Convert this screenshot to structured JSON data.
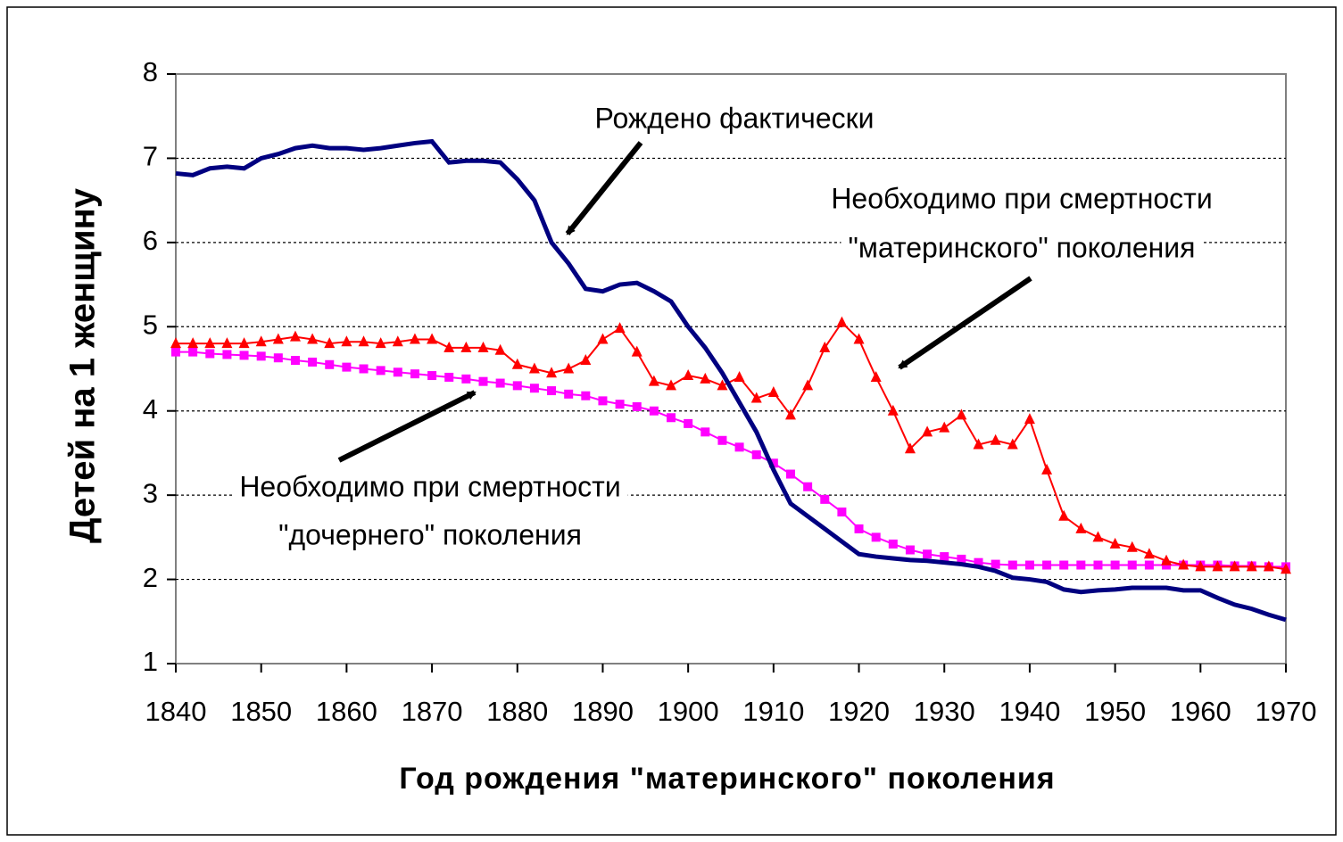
{
  "chart_data": {
    "type": "line",
    "xlabel": "Год рождения \"материнского\" поколения",
    "ylabel": "Детей на 1 женщину",
    "annotations": [
      [
        "Рождено фактически"
      ],
      [
        "Необходимо при смертности",
        "\"материнского\" поколения"
      ],
      [
        "Необходимо при смертности",
        "\"дочернего\" поколения"
      ]
    ],
    "x": [
      1840,
      1842,
      1844,
      1846,
      1848,
      1850,
      1852,
      1854,
      1856,
      1858,
      1860,
      1862,
      1864,
      1866,
      1868,
      1870,
      1872,
      1874,
      1876,
      1878,
      1880,
      1882,
      1884,
      1886,
      1888,
      1890,
      1892,
      1894,
      1896,
      1898,
      1900,
      1902,
      1904,
      1906,
      1908,
      1910,
      1912,
      1914,
      1916,
      1918,
      1920,
      1922,
      1924,
      1926,
      1928,
      1930,
      1932,
      1934,
      1936,
      1938,
      1940,
      1942,
      1944,
      1946,
      1948,
      1950,
      1952,
      1954,
      1956,
      1958,
      1960,
      1962,
      1964,
      1966,
      1968,
      1970
    ],
    "series": [
      {
        "color": "#000080",
        "marker": "none",
        "values": [
          6.82,
          6.8,
          6.88,
          6.9,
          6.88,
          7.0,
          7.05,
          7.12,
          7.15,
          7.12,
          7.12,
          7.1,
          7.12,
          7.15,
          7.18,
          7.2,
          6.95,
          6.97,
          6.97,
          6.95,
          6.75,
          6.5,
          6.0,
          5.75,
          5.45,
          5.42,
          5.5,
          5.52,
          5.42,
          5.3,
          5.0,
          4.75,
          4.45,
          4.1,
          3.75,
          3.3,
          2.9,
          2.75,
          2.6,
          2.45,
          2.3,
          2.27,
          2.25,
          2.23,
          2.22,
          2.2,
          2.18,
          2.15,
          2.1,
          2.02,
          2.0,
          1.97,
          1.88,
          1.85,
          1.87,
          1.88,
          1.9,
          1.9,
          1.9,
          1.87,
          1.87,
          1.78,
          1.7,
          1.65,
          1.58,
          1.52
        ]
      },
      {
        "color": "#ff0000",
        "marker": "triangle",
        "values": [
          4.8,
          4.8,
          4.8,
          4.8,
          4.8,
          4.82,
          4.85,
          4.88,
          4.85,
          4.8,
          4.82,
          4.82,
          4.8,
          4.82,
          4.85,
          4.85,
          4.75,
          4.75,
          4.75,
          4.72,
          4.55,
          4.5,
          4.45,
          4.5,
          4.6,
          4.85,
          4.98,
          4.7,
          4.35,
          4.3,
          4.42,
          4.38,
          4.3,
          4.4,
          4.15,
          4.22,
          3.95,
          4.3,
          4.75,
          5.05,
          4.85,
          4.4,
          4.0,
          3.55,
          3.75,
          3.8,
          3.95,
          3.6,
          3.65,
          3.6,
          3.9,
          3.3,
          2.75,
          2.6,
          2.5,
          2.42,
          2.38,
          2.3,
          2.22,
          2.17,
          2.15,
          2.15,
          2.15,
          2.15,
          2.15,
          2.12
        ]
      },
      {
        "color": "#ff00ff",
        "marker": "square",
        "values": [
          4.7,
          4.7,
          4.68,
          4.67,
          4.66,
          4.65,
          4.63,
          4.6,
          4.58,
          4.55,
          4.52,
          4.5,
          4.48,
          4.46,
          4.44,
          4.42,
          4.4,
          4.38,
          4.35,
          4.33,
          4.3,
          4.27,
          4.24,
          4.2,
          4.18,
          4.12,
          4.08,
          4.05,
          4.0,
          3.92,
          3.85,
          3.75,
          3.65,
          3.57,
          3.48,
          3.38,
          3.25,
          3.1,
          2.95,
          2.8,
          2.6,
          2.5,
          2.42,
          2.35,
          2.3,
          2.27,
          2.24,
          2.2,
          2.18,
          2.17,
          2.17,
          2.17,
          2.17,
          2.17,
          2.17,
          2.17,
          2.17,
          2.17,
          2.17,
          2.17,
          2.17,
          2.17,
          2.16,
          2.16,
          2.15,
          2.15
        ]
      }
    ],
    "xlim": [
      1840,
      1970
    ],
    "xticks": [
      1840,
      1850,
      1860,
      1870,
      1880,
      1890,
      1900,
      1910,
      1920,
      1930,
      1940,
      1950,
      1960,
      1970
    ],
    "ylim": [
      1,
      8
    ],
    "yticks": [
      1,
      2,
      3,
      4,
      5,
      6,
      7,
      8
    ],
    "grid": true
  }
}
